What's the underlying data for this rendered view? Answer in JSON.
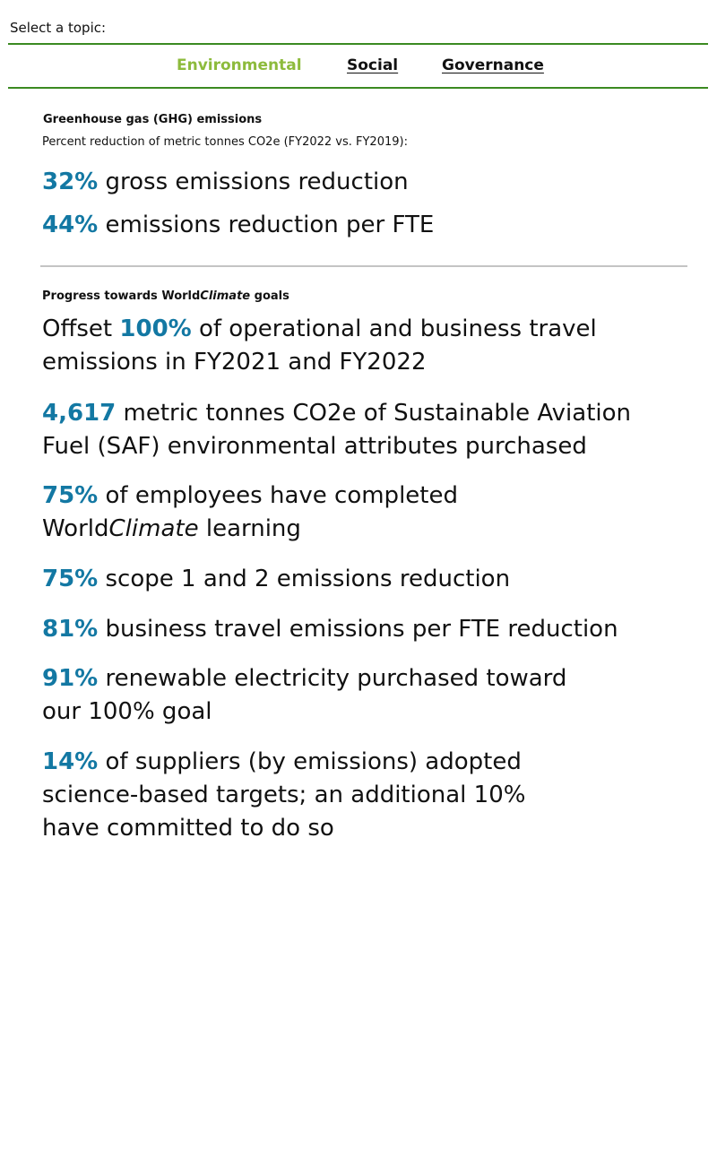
{
  "topic_selector": {
    "label": "Select a topic:",
    "tabs": [
      {
        "label": "Environmental",
        "active": true
      },
      {
        "label": "Social",
        "active": false
      },
      {
        "label": "Governance",
        "active": false
      }
    ],
    "border_color": "#3b8a21",
    "active_color": "#8dbb3c"
  },
  "ghg": {
    "title": "Greenhouse gas (GHG) emissions",
    "subtitle": "Percent reduction of metric tonnes CO2e (FY2022 vs. FY2019):",
    "stats": [
      {
        "value": "32%",
        "text": " gross emissions reduction"
      },
      {
        "value": "44%",
        "text": " emissions reduction per FTE"
      }
    ]
  },
  "progress": {
    "title_prefix": "Progress towards World",
    "title_em": "Climate",
    "title_suffix": " goals",
    "stats": {
      "offset": {
        "pre": "Offset ",
        "value": "100%",
        "text": " of  operational and business travel emissions in FY2021 and FY2022"
      },
      "saf": {
        "value": "4,617",
        "text": " metric tonnes CO2e of Sustainable Aviation Fuel (SAF) environmental attributes purchased"
      },
      "learning": {
        "value": "75%",
        "text_pre": " of employees have completed World",
        "text_em": "Climate",
        "text_post": " learning"
      },
      "scope": {
        "value": "75%",
        "text": " scope 1 and 2 emissions reduction"
      },
      "travel": {
        "value": "81%",
        "text": " business travel emissions per FTE reduction"
      },
      "renewable": {
        "value": "91%",
        "text": " renewable electricity purchased toward our 100% goal"
      },
      "suppliers": {
        "value": "14%",
        "text": " of suppliers (by emissions) adopted science-based targets; an additional 10% have committed to do so"
      }
    },
    "highlight_color": "#1378a3"
  }
}
